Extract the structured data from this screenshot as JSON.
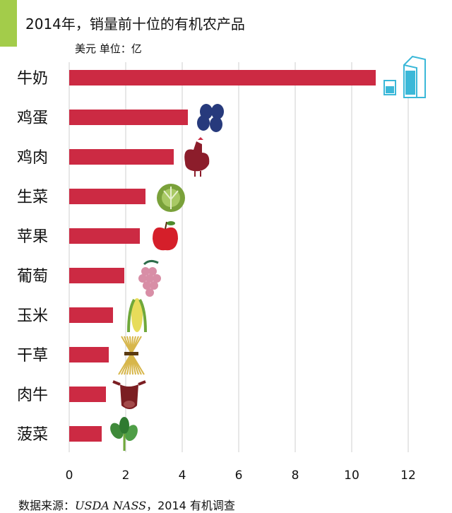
{
  "title": "2014年，销量前十位的有机农产品",
  "unit_label": "美元 单位：亿",
  "source": {
    "prefix": "数据来源：",
    "name": "USDA NASS",
    "suffix": "，2014 有机调查"
  },
  "colors": {
    "bar": "#cc2a43",
    "accent": "#a3cc4a",
    "grid": "#cfcfcf"
  },
  "chart_data": {
    "type": "bar",
    "orientation": "horizontal",
    "categories": [
      "牛奶",
      "鸡蛋",
      "鸡肉",
      "生菜",
      "苹果",
      "葡萄",
      "玉米",
      "干草",
      "肉牛",
      "菠菜"
    ],
    "values": [
      10.85,
      4.2,
      3.7,
      2.7,
      2.5,
      1.95,
      1.55,
      1.4,
      1.3,
      1.15
    ],
    "icons": [
      "milk-icon",
      "egg-icon",
      "chicken-icon",
      "lettuce-icon",
      "apple-icon",
      "grape-icon",
      "corn-icon",
      "hay-icon",
      "cow-icon",
      "spinach-icon"
    ],
    "x_ticks": [
      "0",
      "2",
      "4",
      "6",
      "8",
      "10",
      "12"
    ],
    "xlim": [
      0,
      12
    ],
    "grid": "vertical",
    "title": "2014年，销量前十位的有机农产品",
    "xlabel": "",
    "ylabel": ""
  }
}
